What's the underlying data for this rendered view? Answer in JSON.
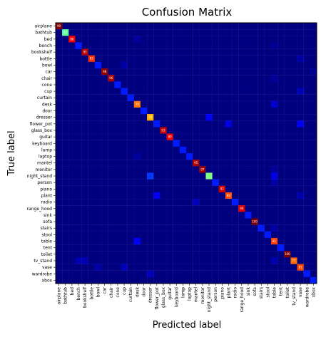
{
  "chart_data": {
    "type": "heatmap",
    "title": "Confusion Matrix",
    "xlabel": "Predicted label",
    "ylabel": "True label",
    "labels": [
      "airplane",
      "bathtub",
      "bed",
      "bench",
      "bookshelf",
      "bottle",
      "bowl",
      "car",
      "chair",
      "cone",
      "cup",
      "curtain",
      "desk",
      "door",
      "dresser",
      "flower_pot",
      "glass_box",
      "guitar",
      "keyboard",
      "lamp",
      "laptop",
      "mantel",
      "monitor",
      "night_stand",
      "person",
      "piano",
      "plant",
      "radio",
      "range_hood",
      "sink",
      "sofa",
      "stairs",
      "stool",
      "table",
      "tent",
      "toilet",
      "tv_stand",
      "vase",
      "wardrobe",
      "xbox"
    ],
    "colormap": "jet",
    "value_range": [
      0,
      100
    ],
    "diagonal": [
      99,
      47,
      88,
      15,
      95,
      83,
      15,
      98,
      96,
      15,
      15,
      15,
      76,
      15,
      70,
      15,
      93,
      89,
      15,
      15,
      15,
      95,
      97,
      50,
      15,
      92,
      80,
      15,
      90,
      15,
      100,
      15,
      15,
      81,
      15,
      100,
      77,
      81,
      15,
      15
    ],
    "diagonal_labels": [
      "99",
      "47",
      "88",
      "",
      "95",
      "83",
      "",
      "98",
      "96",
      "",
      "",
      "",
      "76",
      "",
      "70",
      "",
      "93",
      "89",
      "",
      "",
      "",
      "95",
      "97",
      "",
      "",
      "92",
      "80",
      "",
      "90",
      "",
      "100",
      "",
      "",
      "81",
      "",
      "100",
      "77",
      "81",
      "",
      ""
    ],
    "off_diagonal": [
      {
        "row": 2,
        "col": 12,
        "value": 3
      },
      {
        "row": 3,
        "col": 33,
        "value": 2
      },
      {
        "row": 5,
        "col": 37,
        "value": 4
      },
      {
        "row": 6,
        "col": 10,
        "value": 4
      },
      {
        "row": 7,
        "col": 39,
        "value": 2
      },
      {
        "row": 8,
        "col": 33,
        "value": 3
      },
      {
        "row": 10,
        "col": 37,
        "value": 6
      },
      {
        "row": 12,
        "col": 33,
        "value": 8
      },
      {
        "row": 14,
        "col": 23,
        "value": 12
      },
      {
        "row": 15,
        "col": 26,
        "value": 10
      },
      {
        "row": 15,
        "col": 37,
        "value": 12
      },
      {
        "row": 20,
        "col": 12,
        "value": 3
      },
      {
        "row": 22,
        "col": 33,
        "value": 3
      },
      {
        "row": 23,
        "col": 14,
        "value": 18
      },
      {
        "row": 23,
        "col": 33,
        "value": 10
      },
      {
        "row": 24,
        "col": 33,
        "value": 4
      },
      {
        "row": 26,
        "col": 15,
        "value": 12
      },
      {
        "row": 26,
        "col": 37,
        "value": 5
      },
      {
        "row": 27,
        "col": 21,
        "value": 6
      },
      {
        "row": 31,
        "col": 33,
        "value": 4
      },
      {
        "row": 33,
        "col": 12,
        "value": 12
      },
      {
        "row": 36,
        "col": 3,
        "value": 5
      },
      {
        "row": 36,
        "col": 4,
        "value": 5
      },
      {
        "row": 36,
        "col": 33,
        "value": 5
      },
      {
        "row": 37,
        "col": 10,
        "value": 6
      },
      {
        "row": 37,
        "col": 6,
        "value": 4
      },
      {
        "row": 38,
        "col": 14,
        "value": 6
      }
    ]
  }
}
